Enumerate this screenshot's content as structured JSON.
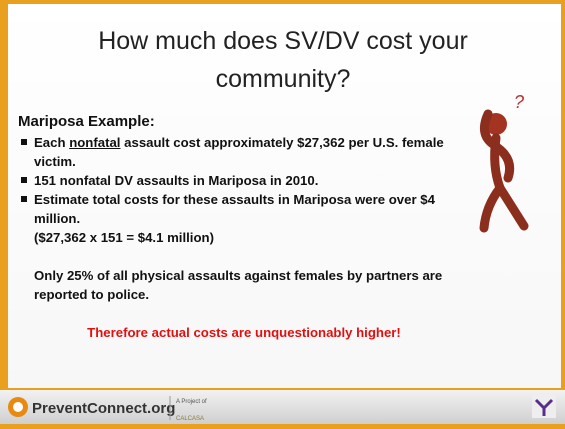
{
  "slide": {
    "title": "How much does SV/DV cost your community?",
    "heading": "Mariposa Example:",
    "bullets": [
      {
        "before": "Each ",
        "underlined": "nonfatal",
        "after": " assault cost approximately $27,362 per U.S. female victim."
      },
      {
        "text": "151 nonfatal DV assaults in Mariposa in 2010."
      },
      {
        "text": "Estimate total costs for these assaults in Mariposa were over $4 million."
      }
    ],
    "calculation": "($27,362 x 151 = $4.1 million)",
    "note": "Only 25% of all physical assaults against females by partners are reported to police.",
    "conclusion": "Therefore actual costs are unquestionably higher!"
  },
  "footer": {
    "logo": "PreventConnect.org",
    "project_of": "A Project of",
    "partner": "CALCASA"
  }
}
